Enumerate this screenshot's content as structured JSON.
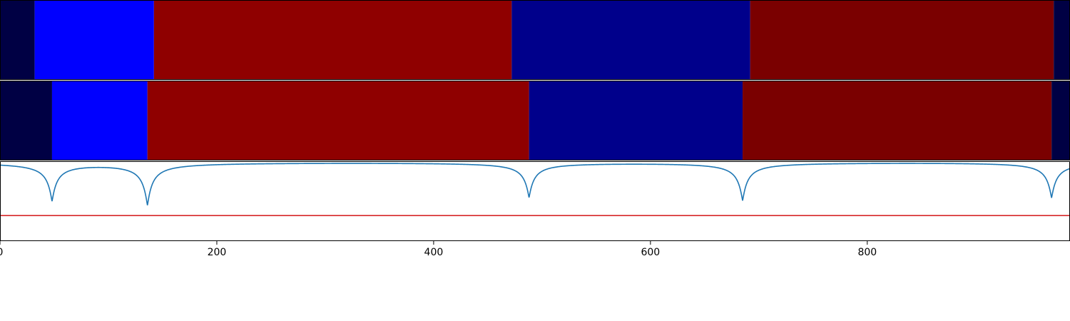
{
  "chart_data": [
    {
      "type": "heatmap",
      "panel": "segmentation-strip-1",
      "segments": [
        {
          "x0": 0,
          "x1": 32,
          "color": "#000044"
        },
        {
          "x0": 32,
          "x1": 142,
          "color": "#0000ff"
        },
        {
          "x0": 142,
          "x1": 472,
          "color": "#8f0000"
        },
        {
          "x0": 472,
          "x1": 692,
          "color": "#00008b"
        },
        {
          "x0": 692,
          "x1": 972,
          "color": "#7a0000"
        },
        {
          "x0": 972,
          "x1": 987,
          "color": "#000044"
        }
      ]
    },
    {
      "type": "heatmap",
      "panel": "segmentation-strip-2",
      "segments": [
        {
          "x0": 0,
          "x1": 48,
          "color": "#000044"
        },
        {
          "x0": 48,
          "x1": 136,
          "color": "#0000ff"
        },
        {
          "x0": 136,
          "x1": 488,
          "color": "#8f0000"
        },
        {
          "x0": 488,
          "x1": 685,
          "color": "#00008b"
        },
        {
          "x0": 685,
          "x1": 970,
          "color": "#7a0000"
        },
        {
          "x0": 970,
          "x1": 987,
          "color": "#000044"
        }
      ]
    },
    {
      "type": "line",
      "panel": "boundary-score",
      "xlim": [
        0,
        987
      ],
      "ylim": [
        0,
        1
      ],
      "xticks": [
        0,
        200,
        400,
        600,
        800
      ],
      "series_color": "#1f77b4",
      "baseline": 0.995,
      "dips": [
        {
          "center": 48,
          "min": 0.52
        },
        {
          "center": 136,
          "min": 0.47
        },
        {
          "center": 488,
          "min": 0.56
        },
        {
          "center": 685,
          "min": 0.52
        },
        {
          "center": 970,
          "min": 0.55
        }
      ],
      "threshold": 0.32,
      "threshold_color": "#d62728"
    }
  ]
}
